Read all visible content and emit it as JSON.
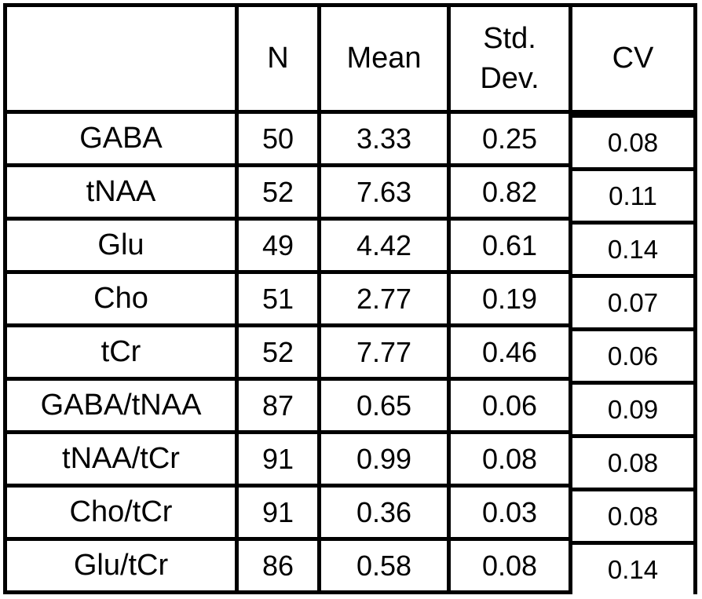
{
  "table": {
    "columns": [
      "",
      "N",
      "Mean",
      "Std. Dev.",
      "CV"
    ],
    "rows": [
      [
        "GABA",
        "50",
        "3.33",
        "0.25",
        "0.08"
      ],
      [
        "tNAA",
        "52",
        "7.63",
        "0.82",
        "0.11"
      ],
      [
        "Glu",
        "49",
        "4.42",
        "0.61",
        "0.14"
      ],
      [
        "Cho",
        "51",
        "2.77",
        "0.19",
        "0.07"
      ],
      [
        "tCr",
        "52",
        "7.77",
        "0.46",
        "0.06"
      ],
      [
        "GABA/tNAA",
        "87",
        "0.65",
        "0.06",
        "0.09"
      ],
      [
        "tNAA/tCr",
        "91",
        "0.99",
        "0.08",
        "0.08"
      ],
      [
        "Cho/tCr",
        "91",
        "0.36",
        "0.03",
        "0.08"
      ],
      [
        "Glu/tCr",
        "86",
        "0.58",
        "0.08",
        "0.14"
      ]
    ]
  },
  "chart_data": {
    "type": "table",
    "title": "",
    "columns": [
      "",
      "N",
      "Mean",
      "Std. Dev.",
      "CV"
    ],
    "rows": [
      {
        "label": "GABA",
        "N": 50,
        "mean": 3.33,
        "std_dev": 0.25,
        "cv": 0.08
      },
      {
        "label": "tNAA",
        "N": 52,
        "mean": 7.63,
        "std_dev": 0.82,
        "cv": 0.11
      },
      {
        "label": "Glu",
        "N": 49,
        "mean": 4.42,
        "std_dev": 0.61,
        "cv": 0.14
      },
      {
        "label": "Cho",
        "N": 51,
        "mean": 2.77,
        "std_dev": 0.19,
        "cv": 0.07
      },
      {
        "label": "tCr",
        "N": 52,
        "mean": 7.77,
        "std_dev": 0.46,
        "cv": 0.06
      },
      {
        "label": "GABA/tNAA",
        "N": 87,
        "mean": 0.65,
        "std_dev": 0.06,
        "cv": 0.09
      },
      {
        "label": "tNAA/tCr",
        "N": 91,
        "mean": 0.99,
        "std_dev": 0.08,
        "cv": 0.08
      },
      {
        "label": "Cho/tCr",
        "N": 91,
        "mean": 0.36,
        "std_dev": 0.03,
        "cv": 0.08
      },
      {
        "label": "Glu/tCr",
        "N": 86,
        "mean": 0.58,
        "std_dev": 0.08,
        "cv": 0.14
      }
    ]
  },
  "colors": {
    "border": "#000000",
    "background": "#ffffff",
    "text": "#000000"
  }
}
